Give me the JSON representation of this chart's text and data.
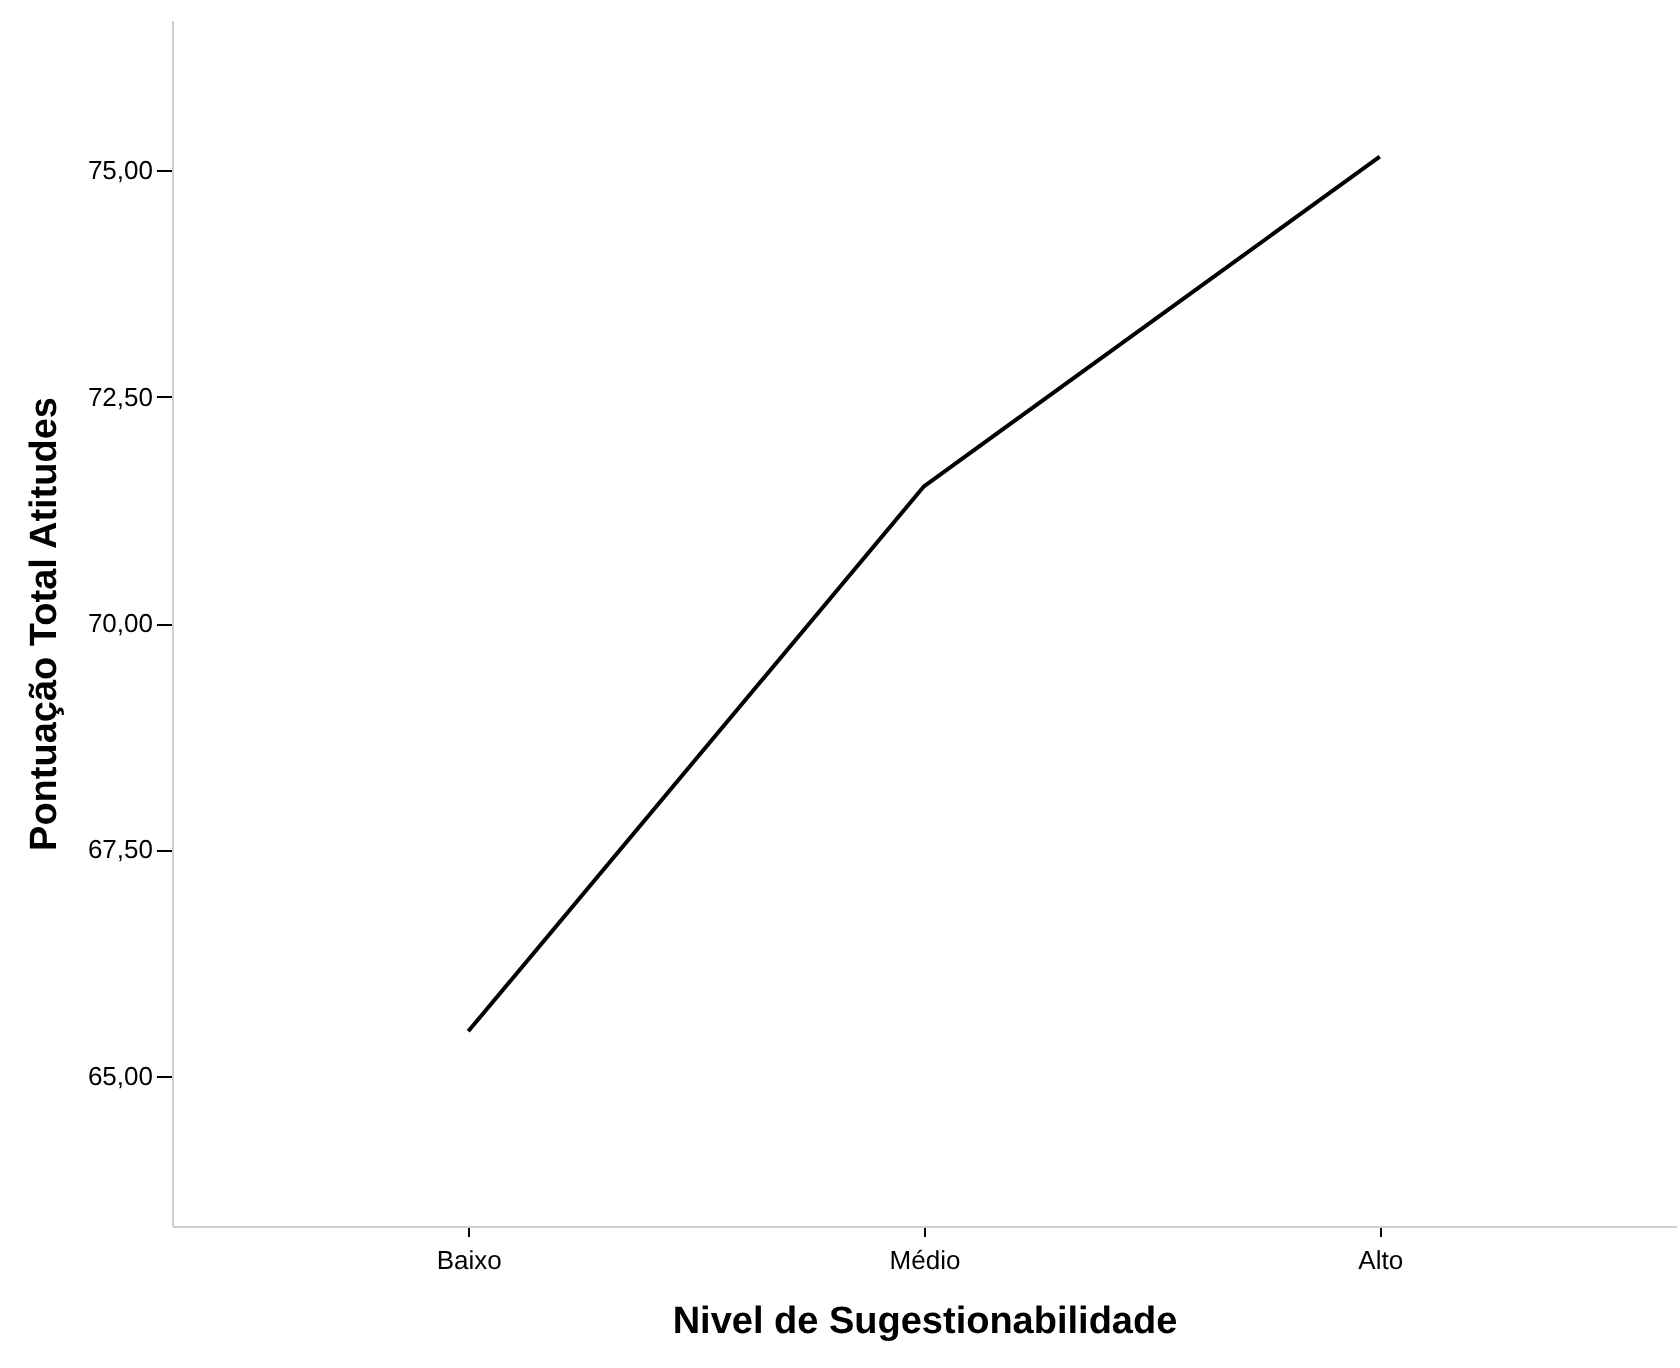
{
  "chart_data": {
    "type": "line",
    "xlabel": "Nivel de Sugestionabilidade",
    "ylabel": "Pontuação Total Atitudes",
    "categories": [
      "Baixo",
      "Médio",
      "Alto"
    ],
    "series": [
      {
        "color": "#000000",
        "values": [
          65.49,
          71.51,
          75.15
        ]
      }
    ],
    "ylim": [
      63.34,
      76.66
    ],
    "yticks": [
      {
        "value": 65,
        "label": "65,00"
      },
      {
        "value": 67.5,
        "label": "67,50"
      },
      {
        "value": 70,
        "label": "70,00"
      },
      {
        "value": 72.5,
        "label": "72,50"
      },
      {
        "value": 75,
        "label": "75,00"
      }
    ],
    "grid": false,
    "marker": "none",
    "line_style": "solid"
  }
}
